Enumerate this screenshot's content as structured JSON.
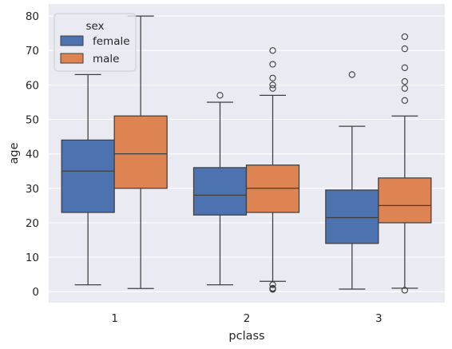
{
  "chart_data": {
    "type": "boxplot",
    "xlabel": "pclass",
    "ylabel": "age",
    "categories": [
      "1",
      "2",
      "3"
    ],
    "ylim": [
      -3.2,
      83.5
    ],
    "yticks": [
      0,
      10,
      20,
      30,
      40,
      50,
      60,
      70,
      80
    ],
    "grid": true,
    "legend": {
      "title": "sex",
      "placement": "top-left"
    },
    "series": [
      {
        "name": "female",
        "color": "#4c72b0",
        "boxes": [
          {
            "category": "1",
            "whisker_low": 2,
            "q1": 23,
            "median": 35,
            "q3": 44,
            "whisker_high": 63,
            "outliers": []
          },
          {
            "category": "2",
            "whisker_low": 2,
            "q1": 22.25,
            "median": 28,
            "q3": 36,
            "whisker_high": 55,
            "outliers": [
              57
            ]
          },
          {
            "category": "3",
            "whisker_low": 0.75,
            "q1": 14,
            "median": 21.5,
            "q3": 29.5,
            "whisker_high": 48,
            "outliers": [
              63
            ]
          }
        ]
      },
      {
        "name": "male",
        "color": "#dd8452",
        "boxes": [
          {
            "category": "1",
            "whisker_low": 0.92,
            "q1": 30,
            "median": 40,
            "q3": 51,
            "whisker_high": 80,
            "outliers": []
          },
          {
            "category": "2",
            "whisker_low": 3,
            "q1": 23,
            "median": 30,
            "q3": 36.75,
            "whisker_high": 57,
            "outliers": [
              0.67,
              0.83,
              1,
              2,
              59,
              60,
              62,
              66,
              70
            ]
          },
          {
            "category": "3",
            "whisker_low": 1,
            "q1": 20,
            "median": 25,
            "q3": 33,
            "whisker_high": 51,
            "outliers": [
              0.42,
              55.5,
              59,
              61,
              65,
              70.5,
              74
            ]
          }
        ]
      }
    ]
  }
}
